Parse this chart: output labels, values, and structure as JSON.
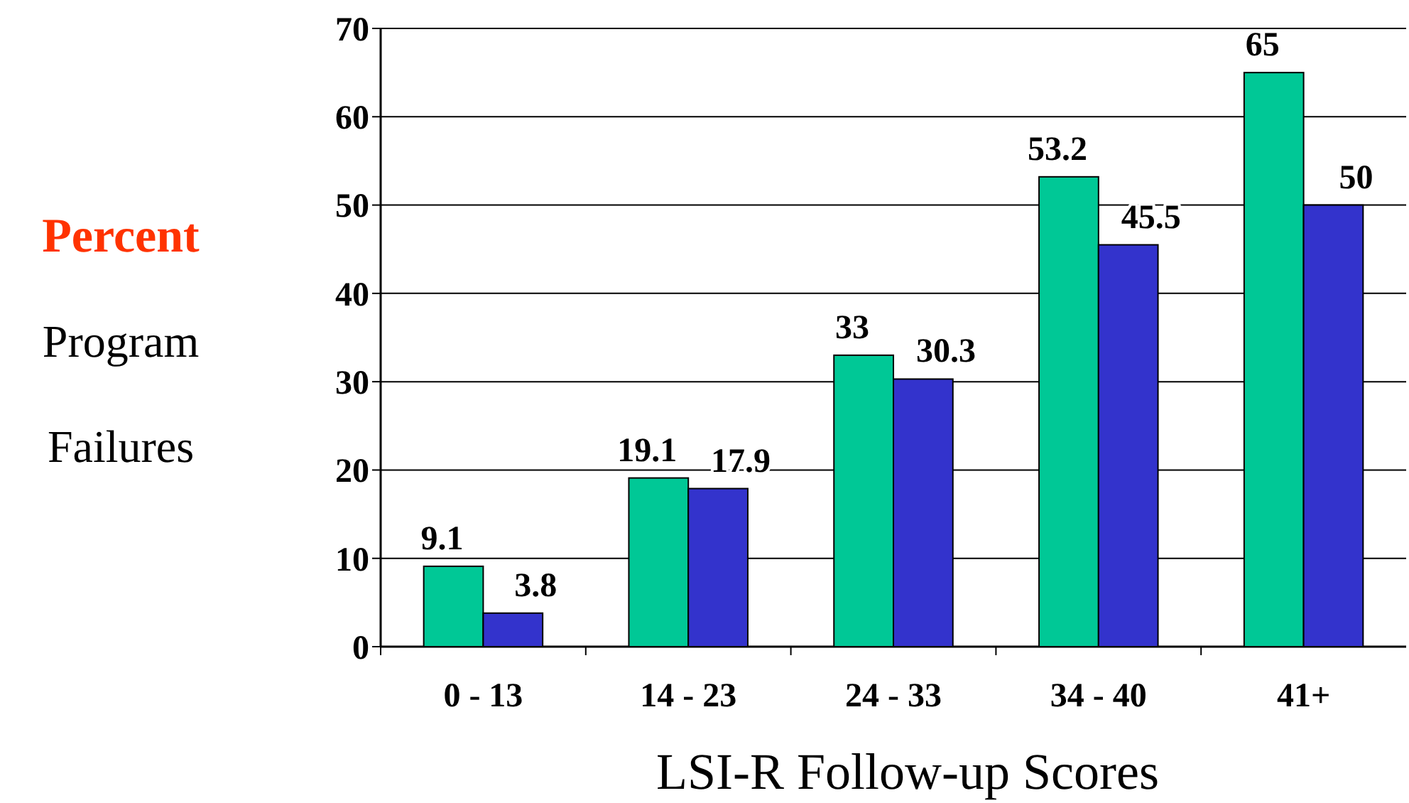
{
  "chart_data": {
    "type": "bar",
    "ylabel": "Percent\nProgram\nFailures",
    "xlabel": "LSI-R Follow-up Scores",
    "categories": [
      "0 - 13",
      "14 - 23",
      "24 - 33",
      "34 - 40",
      "41+"
    ],
    "series": [
      {
        "color": "#00c896",
        "values": [
          9.1,
          19.1,
          33,
          53.2,
          65
        ]
      },
      {
        "color": "#3333cc",
        "values": [
          3.8,
          17.9,
          30.3,
          45.5,
          50
        ]
      }
    ],
    "ylim": [
      0,
      70
    ],
    "yticks": [
      0,
      10,
      20,
      30,
      40,
      50,
      60,
      70
    ],
    "grid": "y",
    "data_labels": true
  }
}
